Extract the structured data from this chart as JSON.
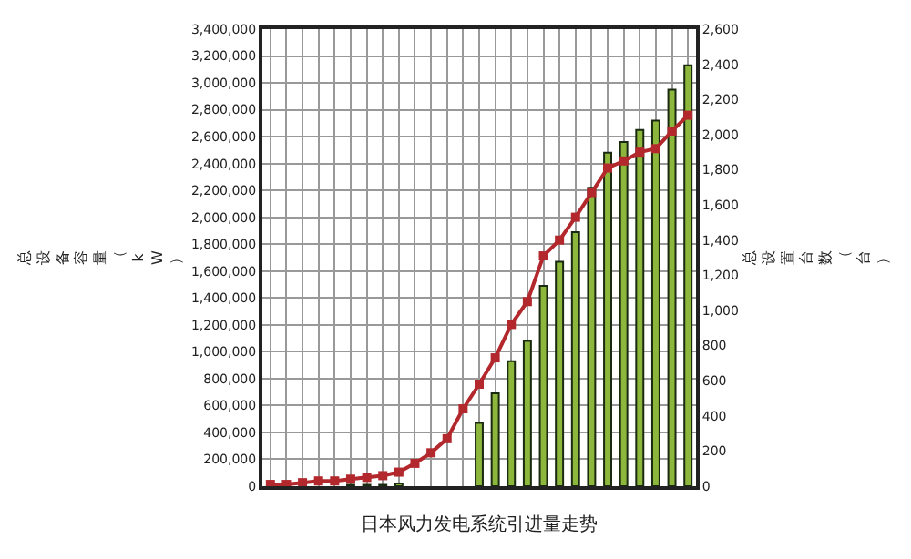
{
  "chart_data": {
    "type": "bar",
    "title": "日本风力发电系统引进量走势",
    "ylabel": "总设备容量（kW）",
    "y2label": "总设置台数（台）",
    "categories": [
      null,
      null,
      null,
      null,
      null,
      null,
      null,
      null,
      null,
      null,
      null,
      null,
      null,
      null,
      null,
      null,
      null,
      null,
      null,
      null,
      null,
      null,
      null,
      null,
      null,
      null,
      null
    ],
    "series": [
      {
        "color": "#8db63c",
        "values": [
          0,
          0,
          0,
          0,
          0,
          10000,
          10000,
          10000,
          20000,
          null,
          null,
          null,
          null,
          470000,
          690000,
          930000,
          1080000,
          1490000,
          1670000,
          1890000,
          2220000,
          2480000,
          2560000,
          2650000,
          2720000,
          2950000,
          3130000
        ]
      },
      {
        "type": "line",
        "axis": "y2",
        "color": "#b3282d",
        "marker": "square",
        "line_style": "solid",
        "values": [
          10,
          10,
          20,
          30,
          30,
          40,
          50,
          60,
          80,
          130,
          190,
          270,
          440,
          580,
          730,
          920,
          1050,
          1310,
          1400,
          1530,
          1670,
          1810,
          1850,
          1900,
          1920,
          2020,
          2110
        ]
      }
    ],
    "ylim": [
      0,
      3400000
    ],
    "yticks": [
      {
        "value": 0,
        "label": "0"
      },
      {
        "value": 200000,
        "label": "200,000"
      },
      {
        "value": 400000,
        "label": "400,000"
      },
      {
        "value": 600000,
        "label": "600,000"
      },
      {
        "value": 800000,
        "label": "800,000"
      },
      {
        "value": 1000000,
        "label": "1,000,000"
      },
      {
        "value": 1200000,
        "label": "1,200,000"
      },
      {
        "value": 1400000,
        "label": "1,400,000"
      },
      {
        "value": 1600000,
        "label": "1,600,000"
      },
      {
        "value": 1800000,
        "label": "1,800,000"
      },
      {
        "value": 2000000,
        "label": "2,000,000"
      },
      {
        "value": 2200000,
        "label": "2,200,000"
      },
      {
        "value": 2400000,
        "label": "2,400,000"
      },
      {
        "value": 2600000,
        "label": "2,600,000"
      },
      {
        "value": 2800000,
        "label": "2,800,000"
      },
      {
        "value": 3000000,
        "label": "3,000,000"
      },
      {
        "value": 3200000,
        "label": "3,200,000"
      },
      {
        "value": 3400000,
        "label": "3,400,000"
      }
    ],
    "y2lim": [
      0,
      2600
    ],
    "y2ticks": [
      0,
      200,
      400,
      600,
      800,
      {
        "value": 1000,
        "label": "1,000"
      },
      {
        "value": 1200,
        "label": "1,200"
      },
      {
        "value": 1400,
        "label": "1,400"
      },
      {
        "value": 1600,
        "label": "1,600"
      },
      {
        "value": 1800,
        "label": "1,800"
      },
      {
        "value": 2000,
        "label": "2,000"
      },
      {
        "value": 2200,
        "label": "2,200"
      },
      {
        "value": 2400,
        "label": "2,400"
      },
      {
        "value": 2600,
        "label": "2,600"
      }
    ],
    "grid": true
  }
}
